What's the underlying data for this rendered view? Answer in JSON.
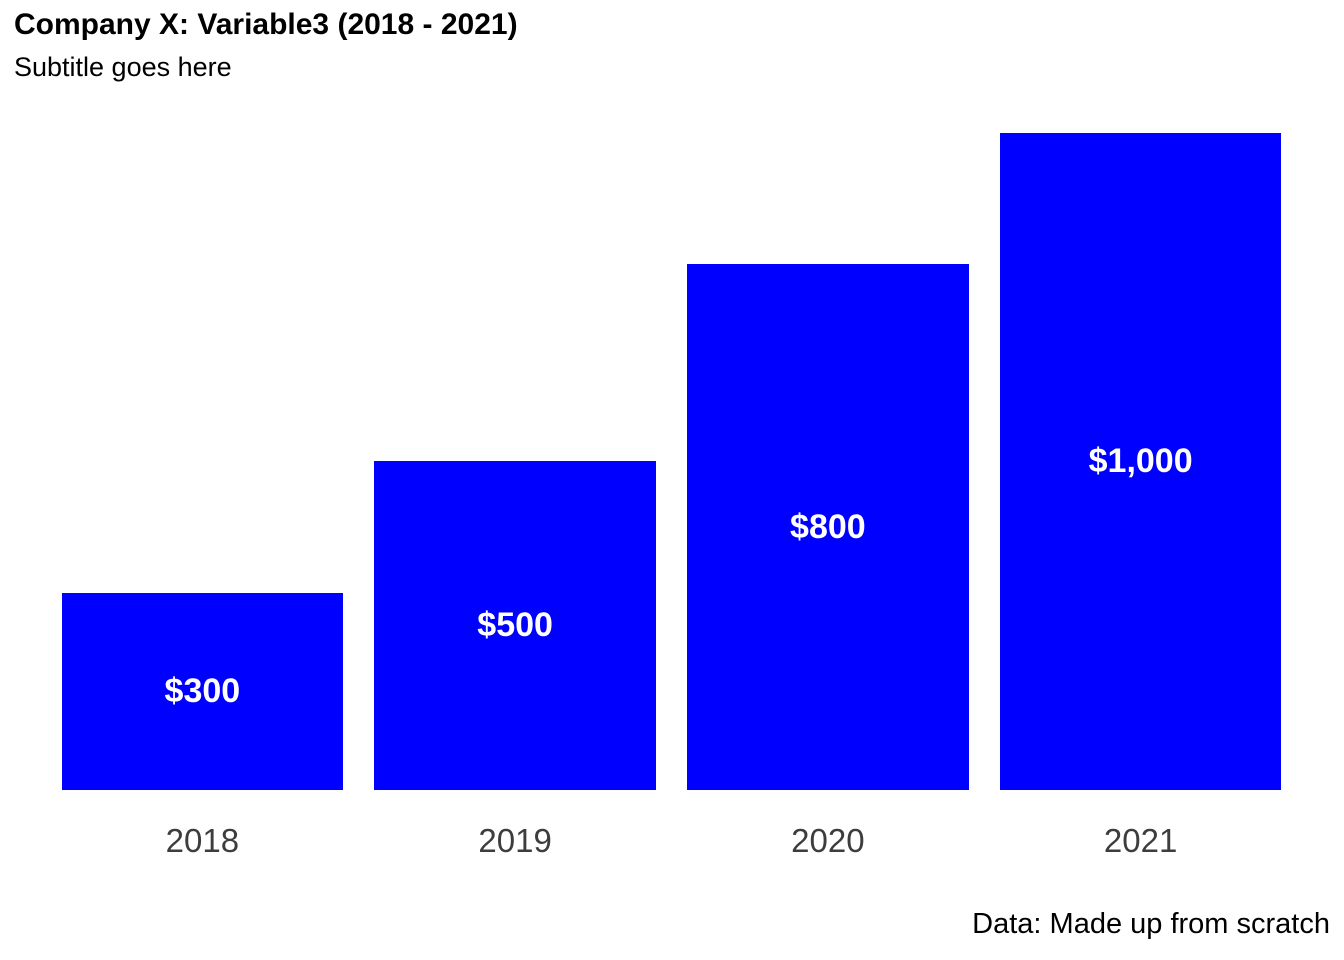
{
  "chart_data": {
    "type": "bar",
    "title": "Company X: Variable3 (2018 - 2021)",
    "subtitle": "Subtitle goes here",
    "caption": "Data: Made up from scratch",
    "categories": [
      "2018",
      "2019",
      "2020",
      "2021"
    ],
    "values": [
      300,
      500,
      800,
      1000
    ],
    "value_labels": [
      "$300",
      "$500",
      "$800",
      "$1,000"
    ],
    "xlabel": "",
    "ylabel": "",
    "ylim": [
      0,
      1050
    ],
    "grid": false,
    "legend_position": "none",
    "background_color": "#FFFFFF",
    "bar_color": "#0000FF",
    "label_color": "#FFFFFF",
    "axis_text_color": "#3D3D3D",
    "title_color": "#000000",
    "bar_width_fraction": 0.9
  }
}
